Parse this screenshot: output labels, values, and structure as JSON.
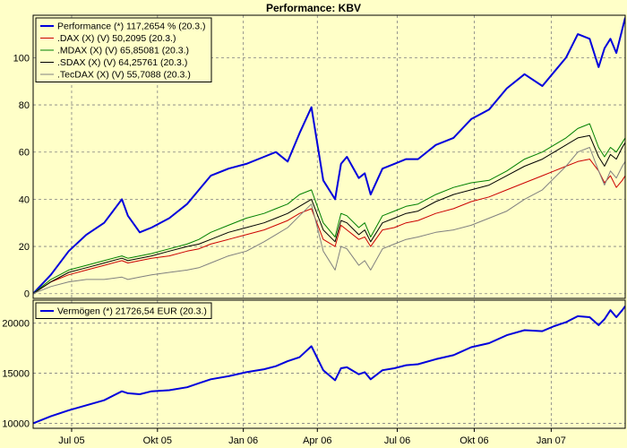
{
  "chart_data": [
    {
      "type": "line",
      "title": "Performance: KBV",
      "xlabel": "",
      "ylabel": "",
      "ylim": [
        -2,
        118
      ],
      "yticks": [
        0,
        20,
        40,
        60,
        80,
        100
      ],
      "x_tick_labels": [
        "Jul 05",
        "Okt 05",
        "Jan 06",
        "Apr 06",
        "Jul 06",
        "Okt 06",
        "Jan 07"
      ],
      "legend_position": "top-left",
      "series": [
        {
          "name": "Performance (*) 117,2654 % (20.3.)",
          "color": "#0000dc",
          "width": 2,
          "x": [
            0,
            0.03,
            0.06,
            0.09,
            0.12,
            0.15,
            0.16,
            0.18,
            0.2,
            0.23,
            0.26,
            0.28,
            0.3,
            0.33,
            0.36,
            0.39,
            0.41,
            0.43,
            0.45,
            0.47,
            0.49,
            0.51,
            0.52,
            0.53,
            0.55,
            0.56,
            0.57,
            0.59,
            0.61,
            0.63,
            0.65,
            0.68,
            0.71,
            0.74,
            0.77,
            0.8,
            0.83,
            0.86,
            0.88,
            0.9,
            0.92,
            0.94,
            0.955,
            0.965,
            0.975,
            0.985,
            0.995,
            1
          ],
          "values": [
            0,
            8,
            18,
            25,
            30,
            40,
            33,
            26,
            28,
            32,
            38,
            44,
            50,
            53,
            55,
            58,
            60,
            56,
            68,
            79,
            48,
            40,
            55,
            58,
            49,
            51,
            42,
            53,
            55,
            57,
            57,
            63,
            66,
            74,
            78,
            87,
            93,
            88,
            94,
            100,
            110,
            108,
            96,
            104,
            108,
            102,
            112,
            117
          ]
        },
        {
          "name": ".DAX (X) (V) 50,2095 (20.3.)",
          "color": "#cc0000",
          "width": 1,
          "x": [
            0,
            0.03,
            0.06,
            0.09,
            0.12,
            0.15,
            0.16,
            0.18,
            0.2,
            0.23,
            0.26,
            0.28,
            0.3,
            0.33,
            0.36,
            0.39,
            0.41,
            0.43,
            0.45,
            0.47,
            0.49,
            0.51,
            0.52,
            0.53,
            0.55,
            0.56,
            0.57,
            0.59,
            0.61,
            0.63,
            0.65,
            0.68,
            0.71,
            0.74,
            0.77,
            0.8,
            0.83,
            0.86,
            0.88,
            0.9,
            0.92,
            0.94,
            0.955,
            0.965,
            0.975,
            0.985,
            0.995,
            1
          ],
          "values": [
            0,
            5,
            8,
            10,
            12,
            14,
            13,
            14,
            15,
            16,
            18,
            19,
            21,
            23,
            25,
            27,
            29,
            31,
            34,
            36,
            23,
            20,
            29,
            27,
            23,
            24,
            20,
            27,
            28,
            30,
            31,
            34,
            36,
            39,
            41,
            44,
            47,
            50,
            52,
            54,
            56,
            57,
            52,
            47,
            50,
            45,
            48,
            50
          ]
        },
        {
          "name": ".MDAX (X) (V) 65,85081 (20.3.)",
          "color": "#008000",
          "width": 1,
          "x": [
            0,
            0.03,
            0.06,
            0.09,
            0.12,
            0.15,
            0.16,
            0.18,
            0.2,
            0.23,
            0.26,
            0.28,
            0.3,
            0.33,
            0.36,
            0.39,
            0.41,
            0.43,
            0.45,
            0.47,
            0.49,
            0.51,
            0.52,
            0.53,
            0.55,
            0.56,
            0.57,
            0.59,
            0.61,
            0.63,
            0.65,
            0.68,
            0.71,
            0.74,
            0.77,
            0.8,
            0.83,
            0.86,
            0.88,
            0.9,
            0.92,
            0.94,
            0.955,
            0.965,
            0.975,
            0.985,
            0.995,
            1
          ],
          "values": [
            0,
            6,
            10,
            12,
            14,
            16,
            15,
            16,
            17,
            19,
            21,
            23,
            26,
            29,
            32,
            34,
            36,
            38,
            42,
            44,
            30,
            24,
            34,
            33,
            28,
            30,
            24,
            33,
            35,
            37,
            38,
            42,
            45,
            47,
            48,
            52,
            57,
            60,
            63,
            66,
            70,
            72,
            62,
            58,
            62,
            60,
            64,
            66
          ]
        },
        {
          "name": ".SDAX (X) (V) 64,25761 (20.3.)",
          "color": "#000000",
          "width": 1,
          "x": [
            0,
            0.03,
            0.06,
            0.09,
            0.12,
            0.15,
            0.16,
            0.18,
            0.2,
            0.23,
            0.26,
            0.28,
            0.3,
            0.33,
            0.36,
            0.39,
            0.41,
            0.43,
            0.45,
            0.47,
            0.49,
            0.51,
            0.52,
            0.53,
            0.55,
            0.56,
            0.57,
            0.59,
            0.61,
            0.63,
            0.65,
            0.68,
            0.71,
            0.74,
            0.77,
            0.8,
            0.83,
            0.86,
            0.88,
            0.9,
            0.92,
            0.94,
            0.955,
            0.965,
            0.975,
            0.985,
            0.995,
            1
          ],
          "values": [
            0,
            5,
            9,
            11,
            13,
            15,
            14,
            15,
            16,
            18,
            20,
            21,
            23,
            26,
            28,
            30,
            32,
            34,
            37,
            40,
            27,
            22,
            31,
            30,
            25,
            27,
            22,
            30,
            32,
            34,
            35,
            39,
            42,
            44,
            46,
            50,
            54,
            57,
            60,
            63,
            66,
            67,
            58,
            54,
            59,
            57,
            62,
            64
          ]
        },
        {
          "name": ".TecDAX (X) (V) 55,7088 (20.3.)",
          "color": "#808080",
          "width": 1,
          "x": [
            0,
            0.03,
            0.06,
            0.09,
            0.12,
            0.15,
            0.16,
            0.18,
            0.2,
            0.23,
            0.26,
            0.28,
            0.3,
            0.33,
            0.36,
            0.39,
            0.41,
            0.43,
            0.45,
            0.47,
            0.49,
            0.51,
            0.52,
            0.53,
            0.55,
            0.56,
            0.57,
            0.59,
            0.61,
            0.63,
            0.65,
            0.68,
            0.71,
            0.74,
            0.77,
            0.8,
            0.83,
            0.86,
            0.88,
            0.9,
            0.92,
            0.94,
            0.955,
            0.965,
            0.975,
            0.985,
            0.995,
            1
          ],
          "values": [
            0,
            3,
            5,
            6,
            6,
            7,
            6,
            7,
            8,
            9,
            10,
            11,
            13,
            16,
            18,
            22,
            25,
            28,
            33,
            38,
            18,
            10,
            20,
            19,
            12,
            14,
            10,
            19,
            21,
            23,
            24,
            26,
            27,
            29,
            32,
            35,
            40,
            44,
            49,
            54,
            60,
            62,
            52,
            46,
            52,
            49,
            54,
            56
          ]
        }
      ]
    },
    {
      "type": "line",
      "title": "",
      "xlabel": "",
      "ylabel": "",
      "ylim": [
        9500,
        22300
      ],
      "yticks": [
        10000,
        15000,
        20000
      ],
      "x_tick_labels": [
        "Jul 05",
        "Okt 05",
        "Jan 06",
        "Apr 06",
        "Jul 06",
        "Okt 06",
        "Jan 07"
      ],
      "legend_position": "top-left",
      "series": [
        {
          "name": "Vermögen (*) 21726,54 EUR (20.3.)",
          "color": "#0000dc",
          "width": 2,
          "x": [
            0,
            0.03,
            0.06,
            0.09,
            0.12,
            0.15,
            0.16,
            0.18,
            0.2,
            0.23,
            0.26,
            0.28,
            0.3,
            0.33,
            0.36,
            0.39,
            0.41,
            0.43,
            0.45,
            0.47,
            0.49,
            0.51,
            0.52,
            0.53,
            0.55,
            0.56,
            0.57,
            0.59,
            0.61,
            0.63,
            0.65,
            0.68,
            0.71,
            0.74,
            0.77,
            0.8,
            0.83,
            0.86,
            0.88,
            0.9,
            0.92,
            0.94,
            0.955,
            0.965,
            0.975,
            0.985,
            0.995,
            1
          ],
          "values": [
            10000,
            10700,
            11300,
            11800,
            12300,
            13200,
            13000,
            12900,
            13200,
            13300,
            13600,
            14000,
            14400,
            14700,
            15100,
            15400,
            15700,
            16200,
            16600,
            17700,
            15300,
            14300,
            15500,
            15600,
            14900,
            15100,
            14400,
            15300,
            15500,
            15800,
            15900,
            16400,
            16800,
            17600,
            18000,
            18800,
            19300,
            19200,
            19700,
            20100,
            20700,
            20600,
            19800,
            20400,
            21300,
            20600,
            21300,
            21700
          ]
        }
      ]
    }
  ]
}
